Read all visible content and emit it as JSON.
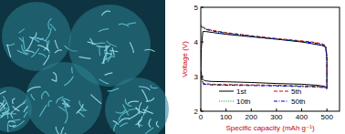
{
  "chart_data": {
    "type": "line",
    "x_label": "Specific capacity (mAh g⁻¹)",
    "y_label": "Voltage (V)",
    "xlim": [
      0,
      550
    ],
    "xticks": [
      0,
      100,
      200,
      300,
      400,
      500
    ],
    "ylim": [
      2,
      5
    ],
    "yticks": [
      2,
      3,
      4,
      5
    ],
    "grid": false,
    "legend": "lower center",
    "series": [
      {
        "name": "1st",
        "color": "#000000",
        "line_style": "solid",
        "x": [
          0,
          5,
          15,
          40,
          100,
          200,
          300,
          400,
          460,
          490,
          500,
          500,
          495,
          480,
          440,
          400,
          300,
          200,
          100,
          50,
          20,
          8,
          2,
          0
        ],
        "values": [
          3.2,
          2.95,
          2.88,
          2.86,
          2.85,
          2.83,
          2.8,
          2.78,
          2.75,
          2.72,
          2.68,
          3.5,
          3.85,
          3.9,
          3.95,
          4.0,
          4.08,
          4.15,
          4.22,
          4.27,
          4.3,
          4.3,
          3.8,
          3.2
        ]
      },
      {
        "name": "5th",
        "color": "#cc0000",
        "line_style": "dashed",
        "x": [
          0,
          10,
          40,
          100,
          200,
          300,
          400,
          460,
          490,
          500,
          500,
          495,
          480,
          440,
          400,
          300,
          200,
          100,
          50,
          20,
          5,
          0
        ],
        "values": [
          3.0,
          2.8,
          2.78,
          2.77,
          2.76,
          2.75,
          2.73,
          2.72,
          2.7,
          2.66,
          3.6,
          3.9,
          3.95,
          4.0,
          4.03,
          4.1,
          4.18,
          4.27,
          4.33,
          4.38,
          4.45,
          4.5
        ]
      },
      {
        "name": "10th",
        "color": "#009900",
        "line_style": "dotted",
        "x": [
          0,
          10,
          40,
          100,
          200,
          300,
          400,
          460,
          490,
          500,
          500,
          495,
          480,
          440,
          400,
          300,
          200,
          100,
          50,
          20,
          5,
          0
        ],
        "values": [
          3.0,
          2.79,
          2.77,
          2.76,
          2.75,
          2.74,
          2.72,
          2.71,
          2.69,
          2.65,
          3.6,
          3.88,
          3.93,
          3.99,
          4.02,
          4.09,
          4.17,
          4.26,
          4.32,
          4.37,
          4.43,
          4.48
        ]
      },
      {
        "name": "50th",
        "color": "#0000cc",
        "line_style": "dashdot",
        "x": [
          0,
          10,
          40,
          100,
          200,
          300,
          400,
          460,
          490,
          500,
          500,
          495,
          480,
          440,
          400,
          300,
          200,
          100,
          50,
          20,
          5,
          0
        ],
        "values": [
          3.0,
          2.78,
          2.76,
          2.75,
          2.74,
          2.73,
          2.71,
          2.7,
          2.68,
          2.64,
          3.55,
          3.87,
          3.92,
          3.98,
          4.01,
          4.08,
          4.16,
          4.25,
          4.31,
          4.36,
          4.42,
          4.47
        ]
      }
    ]
  }
}
